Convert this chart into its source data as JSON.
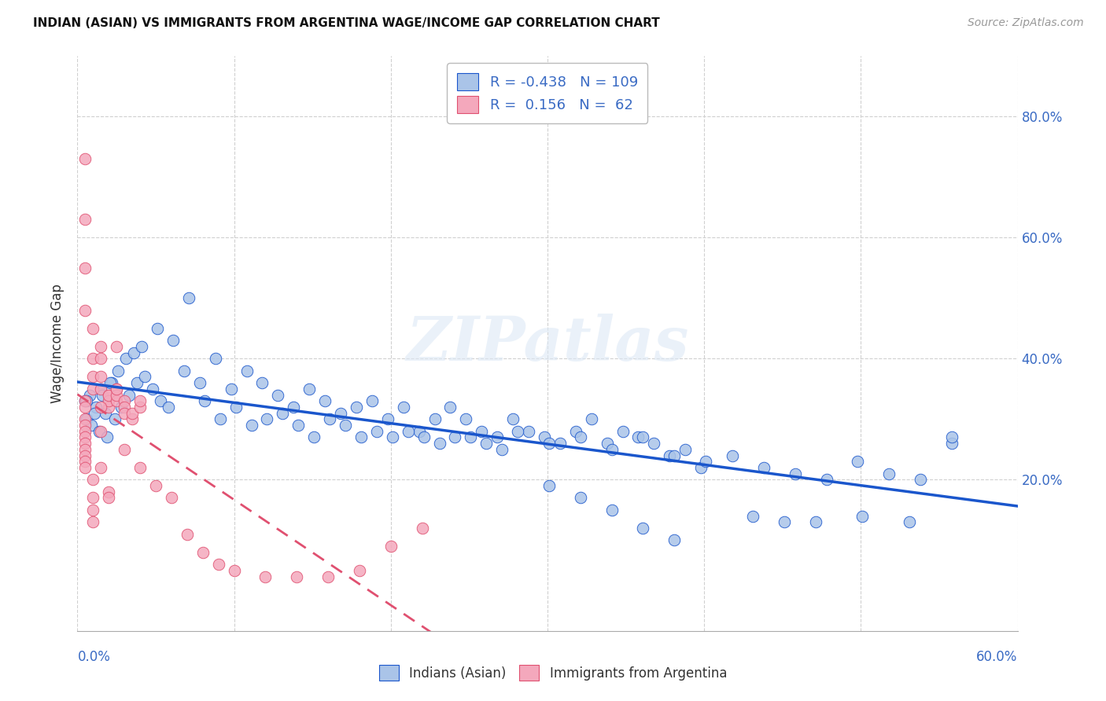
{
  "title": "INDIAN (ASIAN) VS IMMIGRANTS FROM ARGENTINA WAGE/INCOME GAP CORRELATION CHART",
  "source": "Source: ZipAtlas.com",
  "ylabel": "Wage/Income Gap",
  "right_yticklabels": [
    "20.0%",
    "40.0%",
    "60.0%",
    "80.0%"
  ],
  "right_ytick_vals": [
    0.2,
    0.4,
    0.6,
    0.8
  ],
  "xlim": [
    0.0,
    0.6
  ],
  "ylim": [
    -0.05,
    0.9
  ],
  "legend_blue_R": "-0.438",
  "legend_blue_N": "109",
  "legend_pink_R": "0.156",
  "legend_pink_N": "62",
  "watermark": "ZIPatlas",
  "blue_color": "#aac4e8",
  "pink_color": "#f4a8bc",
  "blue_line_color": "#1a56cc",
  "pink_line_color": "#e05070",
  "background_color": "#ffffff",
  "blue_scatter_x": [
    0.008,
    0.005,
    0.012,
    0.018,
    0.015,
    0.022,
    0.006,
    0.009,
    0.014,
    0.019,
    0.024,
    0.028,
    0.033,
    0.038,
    0.043,
    0.048,
    0.053,
    0.058,
    0.068,
    0.078,
    0.088,
    0.098,
    0.108,
    0.118,
    0.128,
    0.138,
    0.148,
    0.158,
    0.168,
    0.178,
    0.188,
    0.198,
    0.208,
    0.218,
    0.228,
    0.238,
    0.248,
    0.258,
    0.268,
    0.278,
    0.288,
    0.298,
    0.308,
    0.318,
    0.328,
    0.338,
    0.348,
    0.358,
    0.368,
    0.378,
    0.388,
    0.398,
    0.418,
    0.438,
    0.458,
    0.478,
    0.498,
    0.518,
    0.538,
    0.558,
    0.006,
    0.011,
    0.016,
    0.021,
    0.026,
    0.031,
    0.036,
    0.041,
    0.051,
    0.061,
    0.071,
    0.081,
    0.091,
    0.101,
    0.111,
    0.121,
    0.131,
    0.141,
    0.151,
    0.161,
    0.171,
    0.181,
    0.191,
    0.201,
    0.211,
    0.221,
    0.231,
    0.241,
    0.251,
    0.261,
    0.271,
    0.281,
    0.301,
    0.321,
    0.341,
    0.361,
    0.381,
    0.401,
    0.431,
    0.451,
    0.471,
    0.501,
    0.531,
    0.558,
    0.301,
    0.321,
    0.341,
    0.361,
    0.381
  ],
  "blue_scatter_y": [
    0.34,
    0.33,
    0.32,
    0.31,
    0.35,
    0.36,
    0.3,
    0.29,
    0.28,
    0.27,
    0.3,
    0.32,
    0.34,
    0.36,
    0.37,
    0.35,
    0.33,
    0.32,
    0.38,
    0.36,
    0.4,
    0.35,
    0.38,
    0.36,
    0.34,
    0.32,
    0.35,
    0.33,
    0.31,
    0.32,
    0.33,
    0.3,
    0.32,
    0.28,
    0.3,
    0.32,
    0.3,
    0.28,
    0.27,
    0.3,
    0.28,
    0.27,
    0.26,
    0.28,
    0.3,
    0.26,
    0.28,
    0.27,
    0.26,
    0.24,
    0.25,
    0.22,
    0.24,
    0.22,
    0.21,
    0.2,
    0.23,
    0.21,
    0.2,
    0.26,
    0.33,
    0.31,
    0.34,
    0.36,
    0.38,
    0.4,
    0.41,
    0.42,
    0.45,
    0.43,
    0.5,
    0.33,
    0.3,
    0.32,
    0.29,
    0.3,
    0.31,
    0.29,
    0.27,
    0.3,
    0.29,
    0.27,
    0.28,
    0.27,
    0.28,
    0.27,
    0.26,
    0.27,
    0.27,
    0.26,
    0.25,
    0.28,
    0.26,
    0.27,
    0.25,
    0.27,
    0.24,
    0.23,
    0.14,
    0.13,
    0.13,
    0.14,
    0.13,
    0.27,
    0.19,
    0.17,
    0.15,
    0.12,
    0.1
  ],
  "pink_scatter_x": [
    0.005,
    0.005,
    0.005,
    0.005,
    0.01,
    0.01,
    0.01,
    0.01,
    0.015,
    0.015,
    0.015,
    0.015,
    0.02,
    0.02,
    0.02,
    0.02,
    0.025,
    0.025,
    0.025,
    0.03,
    0.03,
    0.03,
    0.035,
    0.035,
    0.04,
    0.04,
    0.005,
    0.005,
    0.005,
    0.005,
    0.005,
    0.005,
    0.005,
    0.005,
    0.005,
    0.005,
    0.005,
    0.01,
    0.01,
    0.01,
    0.01,
    0.015,
    0.015,
    0.015,
    0.02,
    0.02,
    0.025,
    0.025,
    0.03,
    0.04,
    0.05,
    0.06,
    0.07,
    0.08,
    0.09,
    0.1,
    0.12,
    0.14,
    0.16,
    0.18,
    0.2,
    0.22
  ],
  "pink_scatter_y": [
    0.73,
    0.63,
    0.55,
    0.48,
    0.45,
    0.4,
    0.37,
    0.35,
    0.42,
    0.4,
    0.37,
    0.35,
    0.34,
    0.32,
    0.33,
    0.34,
    0.35,
    0.33,
    0.34,
    0.33,
    0.32,
    0.31,
    0.3,
    0.31,
    0.32,
    0.33,
    0.33,
    0.32,
    0.3,
    0.29,
    0.28,
    0.27,
    0.26,
    0.25,
    0.24,
    0.23,
    0.22,
    0.2,
    0.17,
    0.15,
    0.13,
    0.32,
    0.28,
    0.22,
    0.18,
    0.17,
    0.42,
    0.35,
    0.25,
    0.22,
    0.19,
    0.17,
    0.11,
    0.08,
    0.06,
    0.05,
    0.04,
    0.04,
    0.04,
    0.05,
    0.09,
    0.12
  ]
}
